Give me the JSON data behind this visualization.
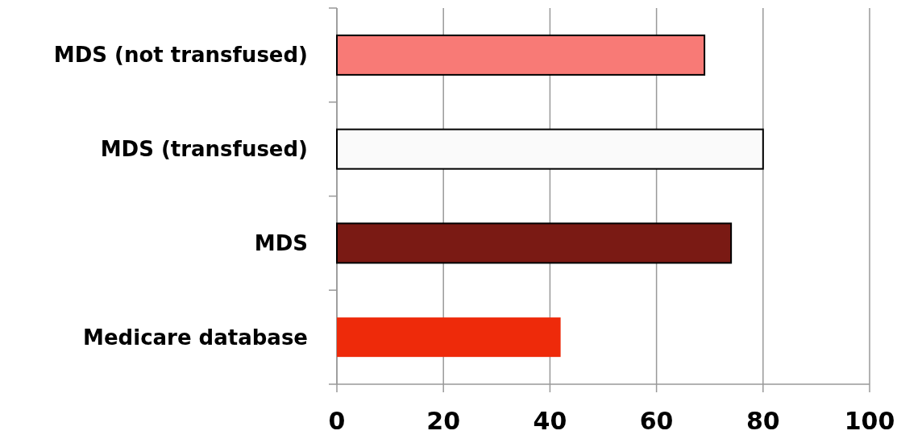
{
  "chart_data": {
    "type": "bar",
    "orientation": "horizontal",
    "categories": [
      "MDS (not transfused)",
      "MDS (transfused)",
      "MDS",
      "Medicare database"
    ],
    "values": [
      69,
      80,
      74,
      42
    ],
    "colors": [
      "#f87a76",
      "#fafafa",
      "#7a1a14",
      "#ee2a0a"
    ],
    "xlim": [
      0,
      100
    ],
    "xticks": [
      0,
      20,
      40,
      60,
      80,
      100
    ],
    "grid": "x"
  }
}
